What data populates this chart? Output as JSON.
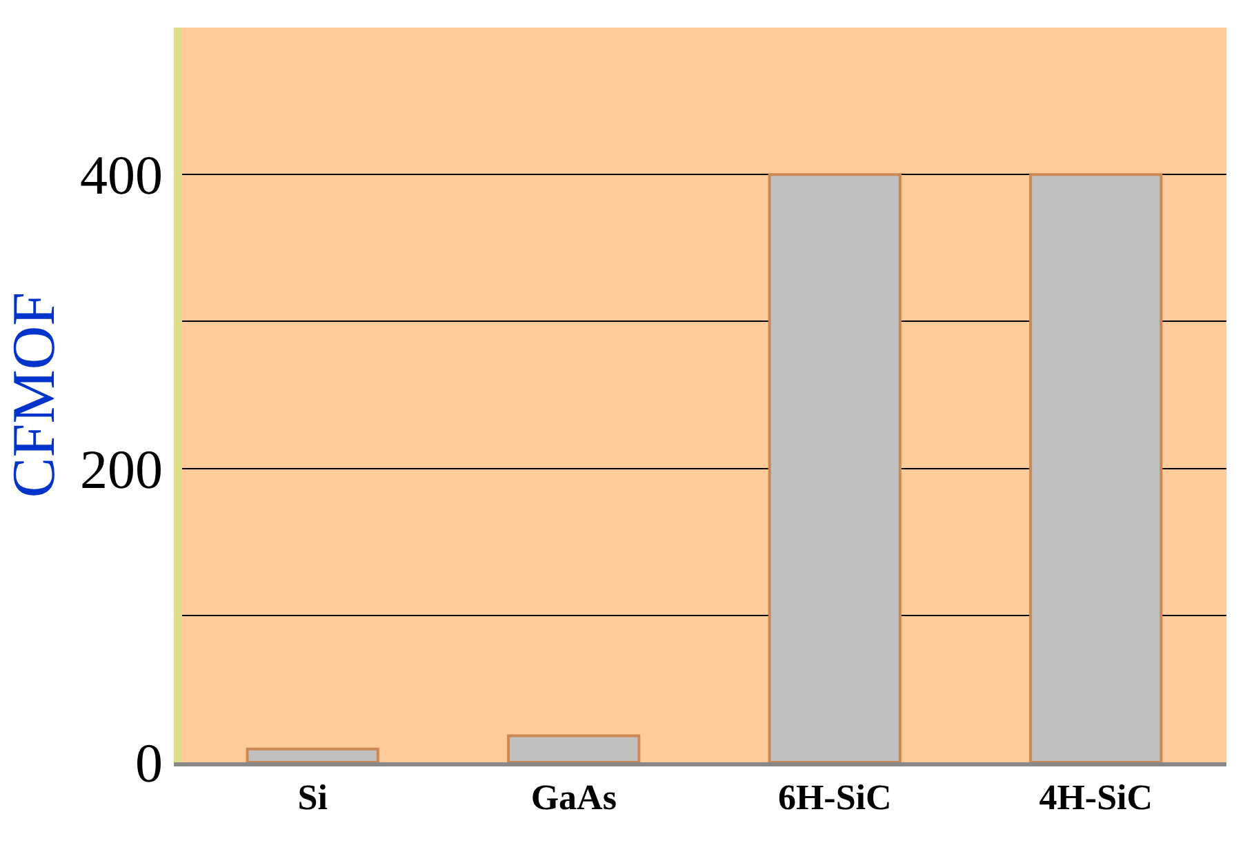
{
  "chart_data": {
    "type": "bar",
    "ylabel": "CFMOF",
    "categories": [
      "Si",
      "GaAs",
      "6H-SiC",
      "4H-SiC"
    ],
    "values": [
      9,
      18,
      400,
      400
    ],
    "color": "#c0c0c0",
    "ylim": [
      0,
      500
    ],
    "yticks": [
      0,
      {
        "value": 100,
        "label": null
      },
      200,
      {
        "value": 300,
        "label": null
      },
      400
    ],
    "grid": "y"
  }
}
